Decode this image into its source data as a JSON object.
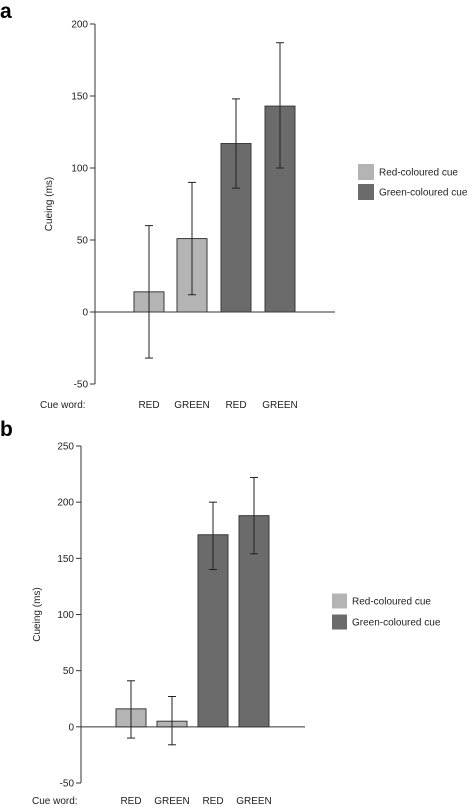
{
  "colors": {
    "red_cue": "#b4b4b4",
    "green_cue": "#6b6b6b",
    "bar_stroke": "#3a3a3a",
    "axis": "#333333"
  },
  "chart_data": [
    {
      "panel_label": "a",
      "type": "bar",
      "ylabel": "Cueing (ms)",
      "ylim": [
        -50,
        200
      ],
      "yticks": [
        -50,
        0,
        50,
        100,
        150,
        200
      ],
      "row_label": "Cue word:",
      "categories": [
        "RED",
        "GREEN",
        "RED",
        "GREEN"
      ],
      "values": [
        14,
        51,
        117,
        143
      ],
      "error_low": [
        -32,
        12,
        86,
        100
      ],
      "error_high": [
        60,
        90,
        148,
        187
      ],
      "bar_group": [
        "Red-coloured cue",
        "Red-coloured cue",
        "Green-coloured cue",
        "Green-coloured cue"
      ],
      "legend": [
        {
          "label": "Red-coloured cue",
          "color": "#b4b4b4"
        },
        {
          "label": "Green-coloured cue",
          "color": "#6b6b6b"
        }
      ],
      "legend_position": "right"
    },
    {
      "panel_label": "b",
      "type": "bar",
      "ylabel": "Cueing (ms)",
      "ylim": [
        -50,
        250
      ],
      "yticks": [
        -50,
        0,
        50,
        100,
        150,
        200,
        250
      ],
      "row_label": "Cue word:",
      "categories": [
        "RED",
        "GREEN",
        "RED",
        "GREEN"
      ],
      "values": [
        16,
        5,
        171,
        188
      ],
      "error_low": [
        -10,
        -16,
        140,
        154
      ],
      "error_high": [
        41,
        27,
        200,
        222
      ],
      "bar_group": [
        "Red-coloured cue",
        "Red-coloured cue",
        "Green-coloured cue",
        "Green-coloured cue"
      ],
      "legend": [
        {
          "label": "Red-coloured cue",
          "color": "#b4b4b4"
        },
        {
          "label": "Green-coloured cue",
          "color": "#6b6b6b"
        }
      ],
      "legend_position": "right"
    }
  ]
}
